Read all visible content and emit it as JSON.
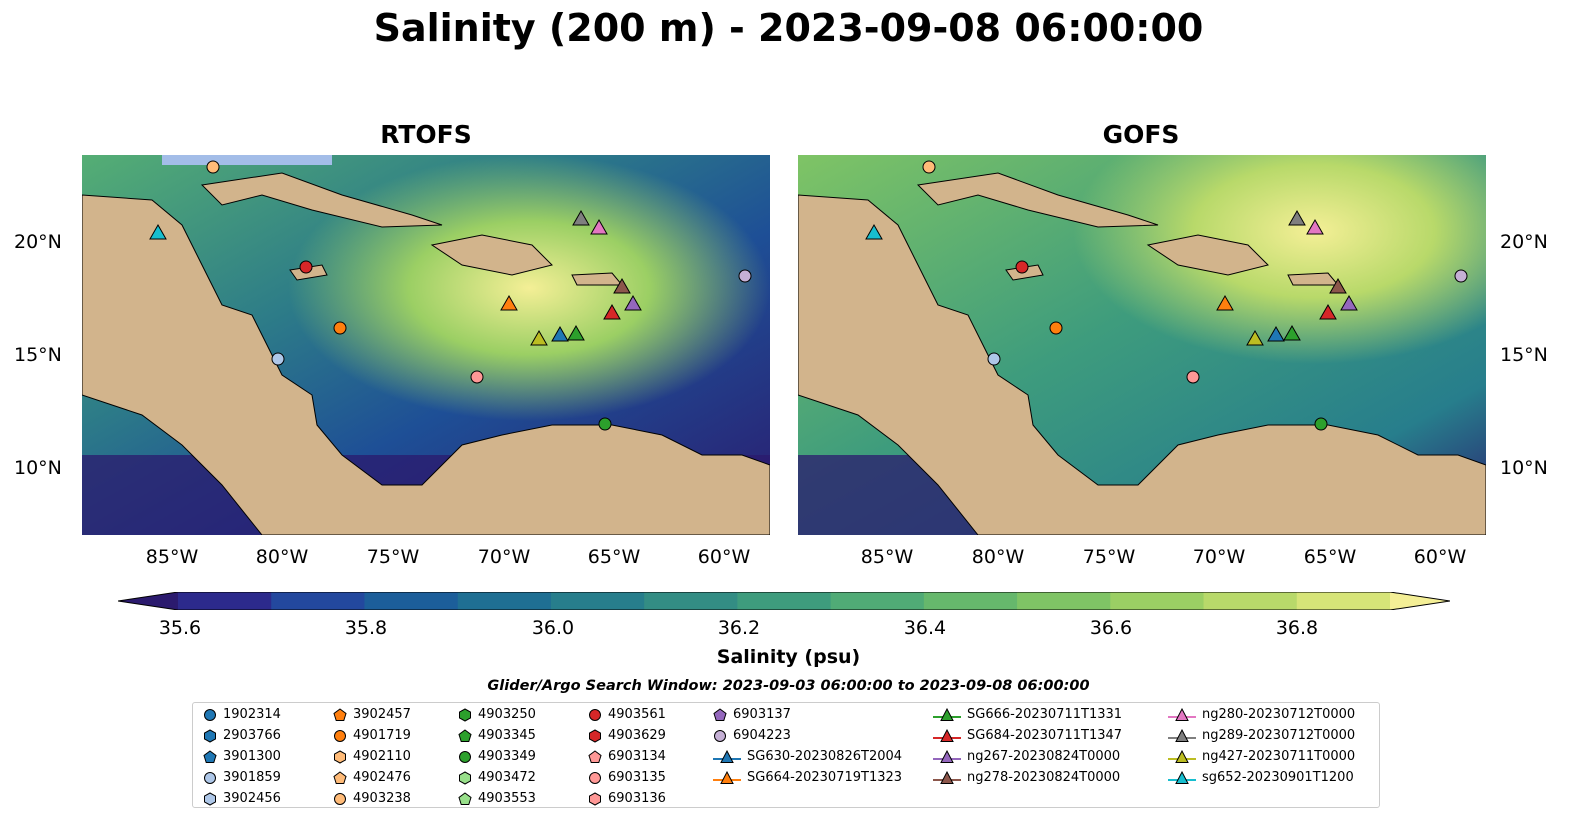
{
  "title": "Salinity (200 m) - 2023-09-08 06:00:00",
  "panels": [
    {
      "title": "RTOFS"
    },
    {
      "title": "GOFS"
    }
  ],
  "lat_labels": [
    "20°N",
    "15°N",
    "10°N"
  ],
  "lon_labels": [
    "85°W",
    "80°W",
    "75°W",
    "70°W",
    "65°W",
    "60°W"
  ],
  "colorbar": {
    "label": "Salinity (psu)",
    "ticks": [
      "35.6",
      "35.8",
      "36.0",
      "36.2",
      "36.4",
      "36.6",
      "36.8"
    ],
    "colors": [
      "#2b1a6e",
      "#2c2a8c",
      "#23489e",
      "#1c5e9a",
      "#1f6f93",
      "#277e8c",
      "#338d84",
      "#3e9c7d",
      "#50ab76",
      "#66b86c",
      "#7fc465",
      "#9bcf64",
      "#b8d96a",
      "#d6e478",
      "#f4ef96"
    ]
  },
  "search_window": "Glider/Argo Search Window: 2023-09-03 06:00:00 to 2023-09-08 06:00:00",
  "legend": [
    {
      "label": "1902314",
      "marker": "circle",
      "color": "#1f77b4"
    },
    {
      "label": "2903766",
      "marker": "hexagon",
      "color": "#1f77b4"
    },
    {
      "label": "3901300",
      "marker": "pentagon",
      "color": "#1f77b4"
    },
    {
      "label": "3901859",
      "marker": "circle",
      "color": "#aec7e8"
    },
    {
      "label": "3902456",
      "marker": "hexagon",
      "color": "#aec7e8"
    },
    {
      "label": "3902457",
      "marker": "pentagon",
      "color": "#ff7f0e"
    },
    {
      "label": "4901719",
      "marker": "circle",
      "color": "#ff7f0e"
    },
    {
      "label": "4902110",
      "marker": "hexagon",
      "color": "#ffbb78"
    },
    {
      "label": "4902476",
      "marker": "pentagon",
      "color": "#ffbb78"
    },
    {
      "label": "4903238",
      "marker": "circle",
      "color": "#ffbb78"
    },
    {
      "label": "4903250",
      "marker": "hexagon",
      "color": "#2ca02c"
    },
    {
      "label": "4903345",
      "marker": "pentagon",
      "color": "#2ca02c"
    },
    {
      "label": "4903349",
      "marker": "circle",
      "color": "#2ca02c"
    },
    {
      "label": "4903472",
      "marker": "hexagon",
      "color": "#98df8a"
    },
    {
      "label": "4903553",
      "marker": "pentagon",
      "color": "#98df8a"
    },
    {
      "label": "4903561",
      "marker": "circle",
      "color": "#d62728"
    },
    {
      "label": "4903629",
      "marker": "hexagon",
      "color": "#d62728"
    },
    {
      "label": "6903134",
      "marker": "pentagon",
      "color": "#ff9896"
    },
    {
      "label": "6903135",
      "marker": "circle",
      "color": "#ff9896"
    },
    {
      "label": "6903136",
      "marker": "hexagon",
      "color": "#ff9896"
    },
    {
      "label": "6903137",
      "marker": "pentagon",
      "color": "#9467bd"
    },
    {
      "label": "6904223",
      "marker": "circle",
      "color": "#c5b0d5"
    },
    {
      "label": "SG630-20230826T2004",
      "marker": "triangle",
      "color": "#1f77b4"
    },
    {
      "label": "SG664-20230719T1323",
      "marker": "triangle",
      "color": "#ff7f0e"
    },
    {
      "label": "SG666-20230711T1331",
      "marker": "triangle",
      "color": "#2ca02c"
    },
    {
      "label": "SG684-20230711T1347",
      "marker": "triangle",
      "color": "#d62728"
    },
    {
      "label": "ng267-20230824T0000",
      "marker": "triangle",
      "color": "#9467bd"
    },
    {
      "label": "ng278-20230824T0000",
      "marker": "triangle",
      "color": "#8c564b"
    },
    {
      "label": "ng280-20230712T0000",
      "marker": "triangle",
      "color": "#e377c2"
    },
    {
      "label": "ng289-20230712T0000",
      "marker": "triangle",
      "color": "#7f7f7f"
    },
    {
      "label": "ng427-20230711T0000",
      "marker": "triangle",
      "color": "#bcbd22"
    },
    {
      "label": "sg652-20230901T1200",
      "marker": "triangle",
      "color": "#17becf"
    }
  ],
  "map_colors": {
    "land": "#d2b48c",
    "water_shallow": "#a3bde8",
    "rtofs_sea": "#1e4f96",
    "gofs_sea": "#5fae76"
  }
}
